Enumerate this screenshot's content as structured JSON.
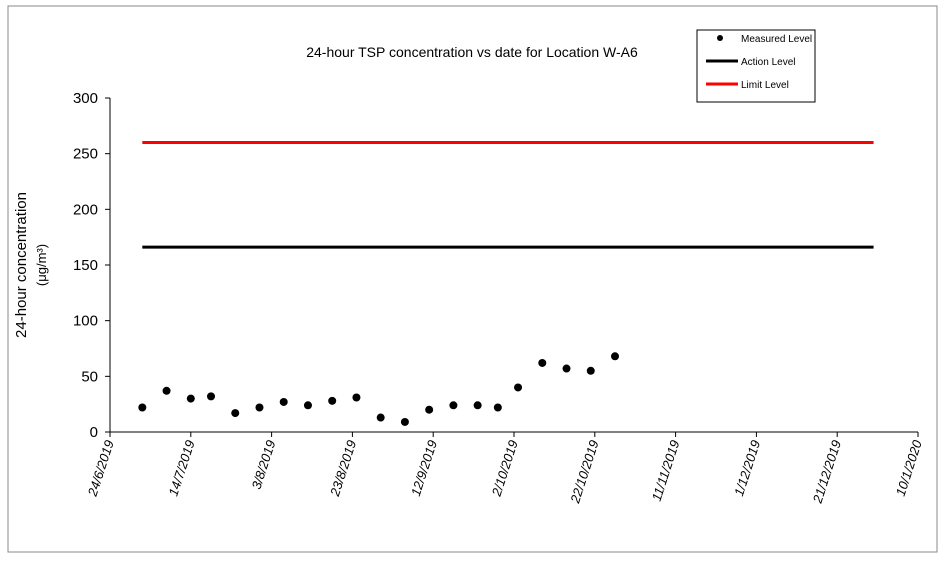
{
  "chart_data": {
    "type": "scatter",
    "title": "24-hour TSP concentration vs date for Location W-A6",
    "y_label": [
      "24-hour concentration",
      "(μg/m³)"
    ],
    "xlim": [
      "2019-06-24",
      "2020-01-10"
    ],
    "xticks": [
      {
        "value": "2019-06-24",
        "label": "24/6/2019"
      },
      {
        "value": "2019-07-14",
        "label": "14/7/2019"
      },
      {
        "value": "2019-08-03",
        "label": "3/8/2019"
      },
      {
        "value": "2019-08-23",
        "label": "23/8/2019"
      },
      {
        "value": "2019-09-12",
        "label": "12/9/2019"
      },
      {
        "value": "2019-10-02",
        "label": "2/10/2019"
      },
      {
        "value": "2019-10-22",
        "label": "22/10/2019"
      },
      {
        "value": "2019-11-11",
        "label": "11/11/2019"
      },
      {
        "value": "2019-12-01",
        "label": "1/12/2019"
      },
      {
        "value": "2019-12-21",
        "label": "21/12/2019"
      },
      {
        "value": "2020-01-10",
        "label": "10/1/2020"
      }
    ],
    "ylim": [
      0,
      300
    ],
    "yticks": [
      0,
      50,
      100,
      150,
      200,
      250,
      300
    ],
    "series": [
      {
        "name": "Measured Level",
        "color": "#000000",
        "mode": "markers",
        "x": [
          "2019-07-02",
          "2019-07-08",
          "2019-07-14",
          "2019-07-19",
          "2019-07-25",
          "2019-07-31",
          "2019-08-06",
          "2019-08-12",
          "2019-08-18",
          "2019-08-24",
          "2019-08-30",
          "2019-09-05",
          "2019-09-11",
          "2019-09-17",
          "2019-09-23",
          "2019-09-28",
          "2019-10-03",
          "2019-10-09",
          "2019-10-15",
          "2019-10-21",
          "2019-10-27"
        ],
        "values": [
          22,
          37,
          30,
          32,
          17,
          22,
          27,
          24,
          28,
          31,
          13,
          9,
          20,
          24,
          24,
          22,
          40,
          62,
          57,
          55,
          68
        ]
      },
      {
        "name": "Action Level",
        "color": "#000000",
        "mode": "lines",
        "x": [
          "2019-07-02",
          "2019-12-30"
        ],
        "values": [
          166,
          166
        ]
      },
      {
        "name": "Limit Level",
        "color": "#ff0000",
        "mode": "lines",
        "x": [
          "2019-07-02",
          "2019-12-30"
        ],
        "values": [
          260,
          260
        ]
      }
    ]
  }
}
